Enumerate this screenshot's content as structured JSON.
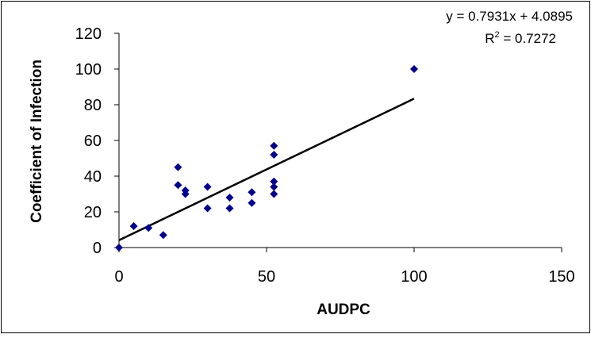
{
  "chart_data": {
    "type": "scatter",
    "title": "",
    "xlabel": "AUDPC",
    "ylabel": "Coefficient of Infection",
    "xlim": [
      0,
      150
    ],
    "ylim": [
      0,
      120
    ],
    "x_ticks": [
      0,
      50,
      100,
      150
    ],
    "y_ticks": [
      0,
      20,
      40,
      60,
      80,
      100,
      120
    ],
    "grid": false,
    "legend": "none",
    "marker": "diamond",
    "marker_color": "#00008B",
    "series": [
      {
        "points": [
          [
            0,
            0
          ],
          [
            5,
            12
          ],
          [
            10,
            11
          ],
          [
            15,
            7
          ],
          [
            20,
            45
          ],
          [
            20,
            35
          ],
          [
            22.5,
            32
          ],
          [
            22.5,
            30
          ],
          [
            30,
            34
          ],
          [
            30,
            22
          ],
          [
            37.5,
            28
          ],
          [
            37.5,
            22
          ],
          [
            45,
            31
          ],
          [
            45,
            25
          ],
          [
            52.5,
            57
          ],
          [
            52.5,
            52
          ],
          [
            52.5,
            37
          ],
          [
            52.5,
            34
          ],
          [
            52.5,
            30
          ],
          [
            100,
            100
          ]
        ]
      }
    ],
    "trendline": {
      "type": "linear",
      "slope": 0.7931,
      "intercept": 4.0895,
      "x_range": [
        0,
        100
      ],
      "color": "#000000",
      "equation_text": "y = 0.7931x + 4.0895",
      "r2_prefix": "R",
      "r2_sup": "2",
      "r2_value_text": " = 0.7272"
    }
  }
}
